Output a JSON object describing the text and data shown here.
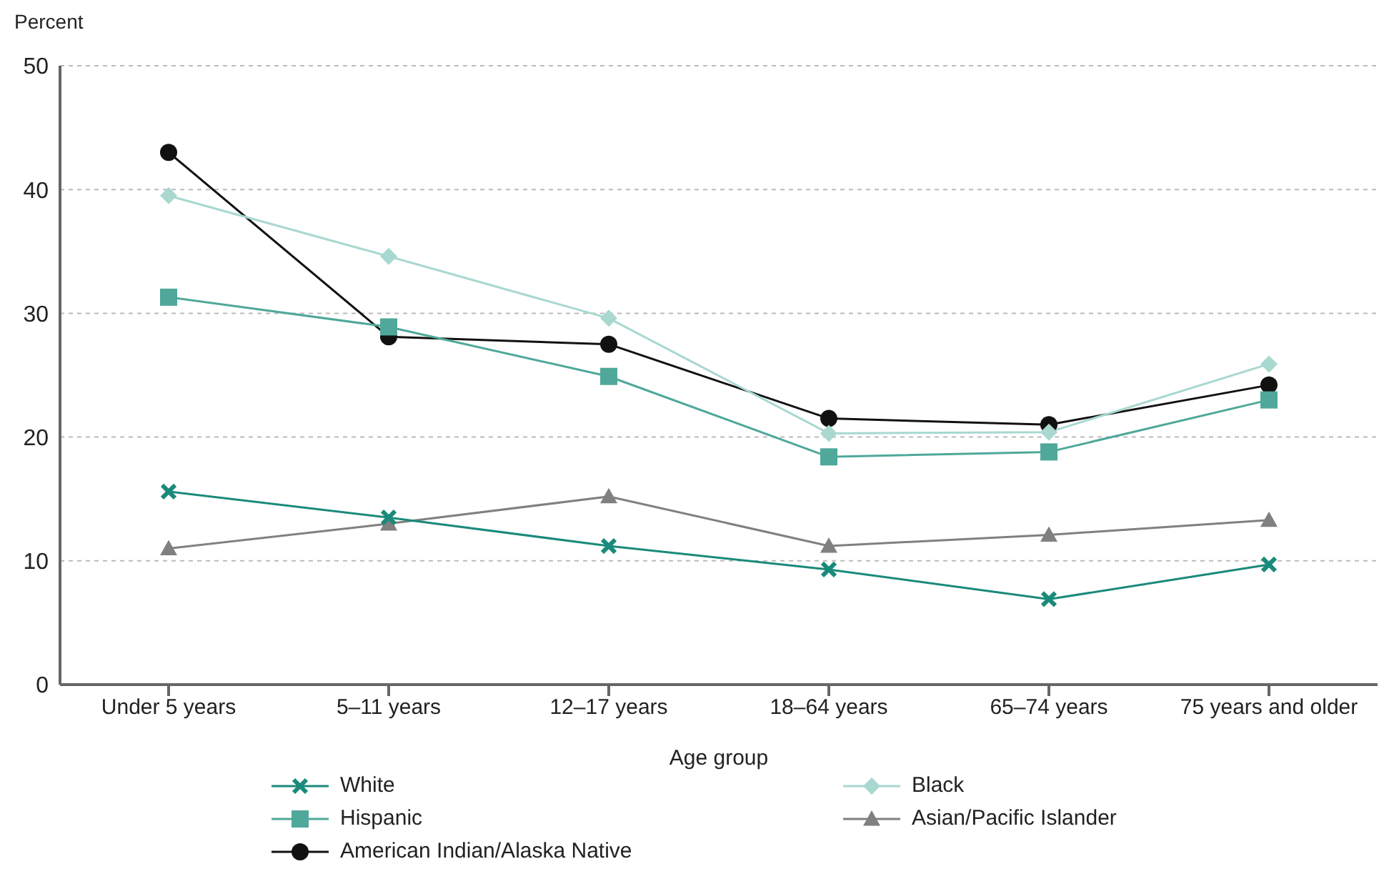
{
  "chart_data": {
    "type": "line",
    "ylabel": "Percent",
    "xlabel": "Age group",
    "categories": [
      "Under 5 years",
      "5–11 years",
      "12–17 years",
      "18–64 years",
      "65–74 years",
      "75 years and older"
    ],
    "series": [
      {
        "name": "White",
        "color": "#1a8a7a",
        "marker": "cross",
        "values": [
          15.6,
          13.5,
          11.2,
          9.3,
          6.9,
          9.7
        ]
      },
      {
        "name": "Black",
        "color": "#a8d8d0",
        "marker": "diamond",
        "values": [
          39.5,
          34.6,
          29.6,
          20.3,
          20.4,
          25.9
        ]
      },
      {
        "name": "Hispanic",
        "color": "#4fa89a",
        "marker": "square",
        "values": [
          31.3,
          28.9,
          24.9,
          18.4,
          18.8,
          23.0
        ]
      },
      {
        "name": "Asian/Pacific Islander",
        "color": "#808080",
        "marker": "triangle",
        "values": [
          11.0,
          13.0,
          15.2,
          11.2,
          12.1,
          13.3
        ]
      },
      {
        "name": "American Indian/Alaska Native",
        "color": "#111111",
        "marker": "circle",
        "values": [
          43.0,
          28.1,
          27.5,
          21.5,
          21.0,
          24.2
        ]
      }
    ],
    "ylim": [
      0,
      50
    ],
    "yticks": [
      0,
      10,
      20,
      30,
      40,
      50
    ],
    "grid": "y",
    "legend": "bottom",
    "line_style": "solid"
  }
}
